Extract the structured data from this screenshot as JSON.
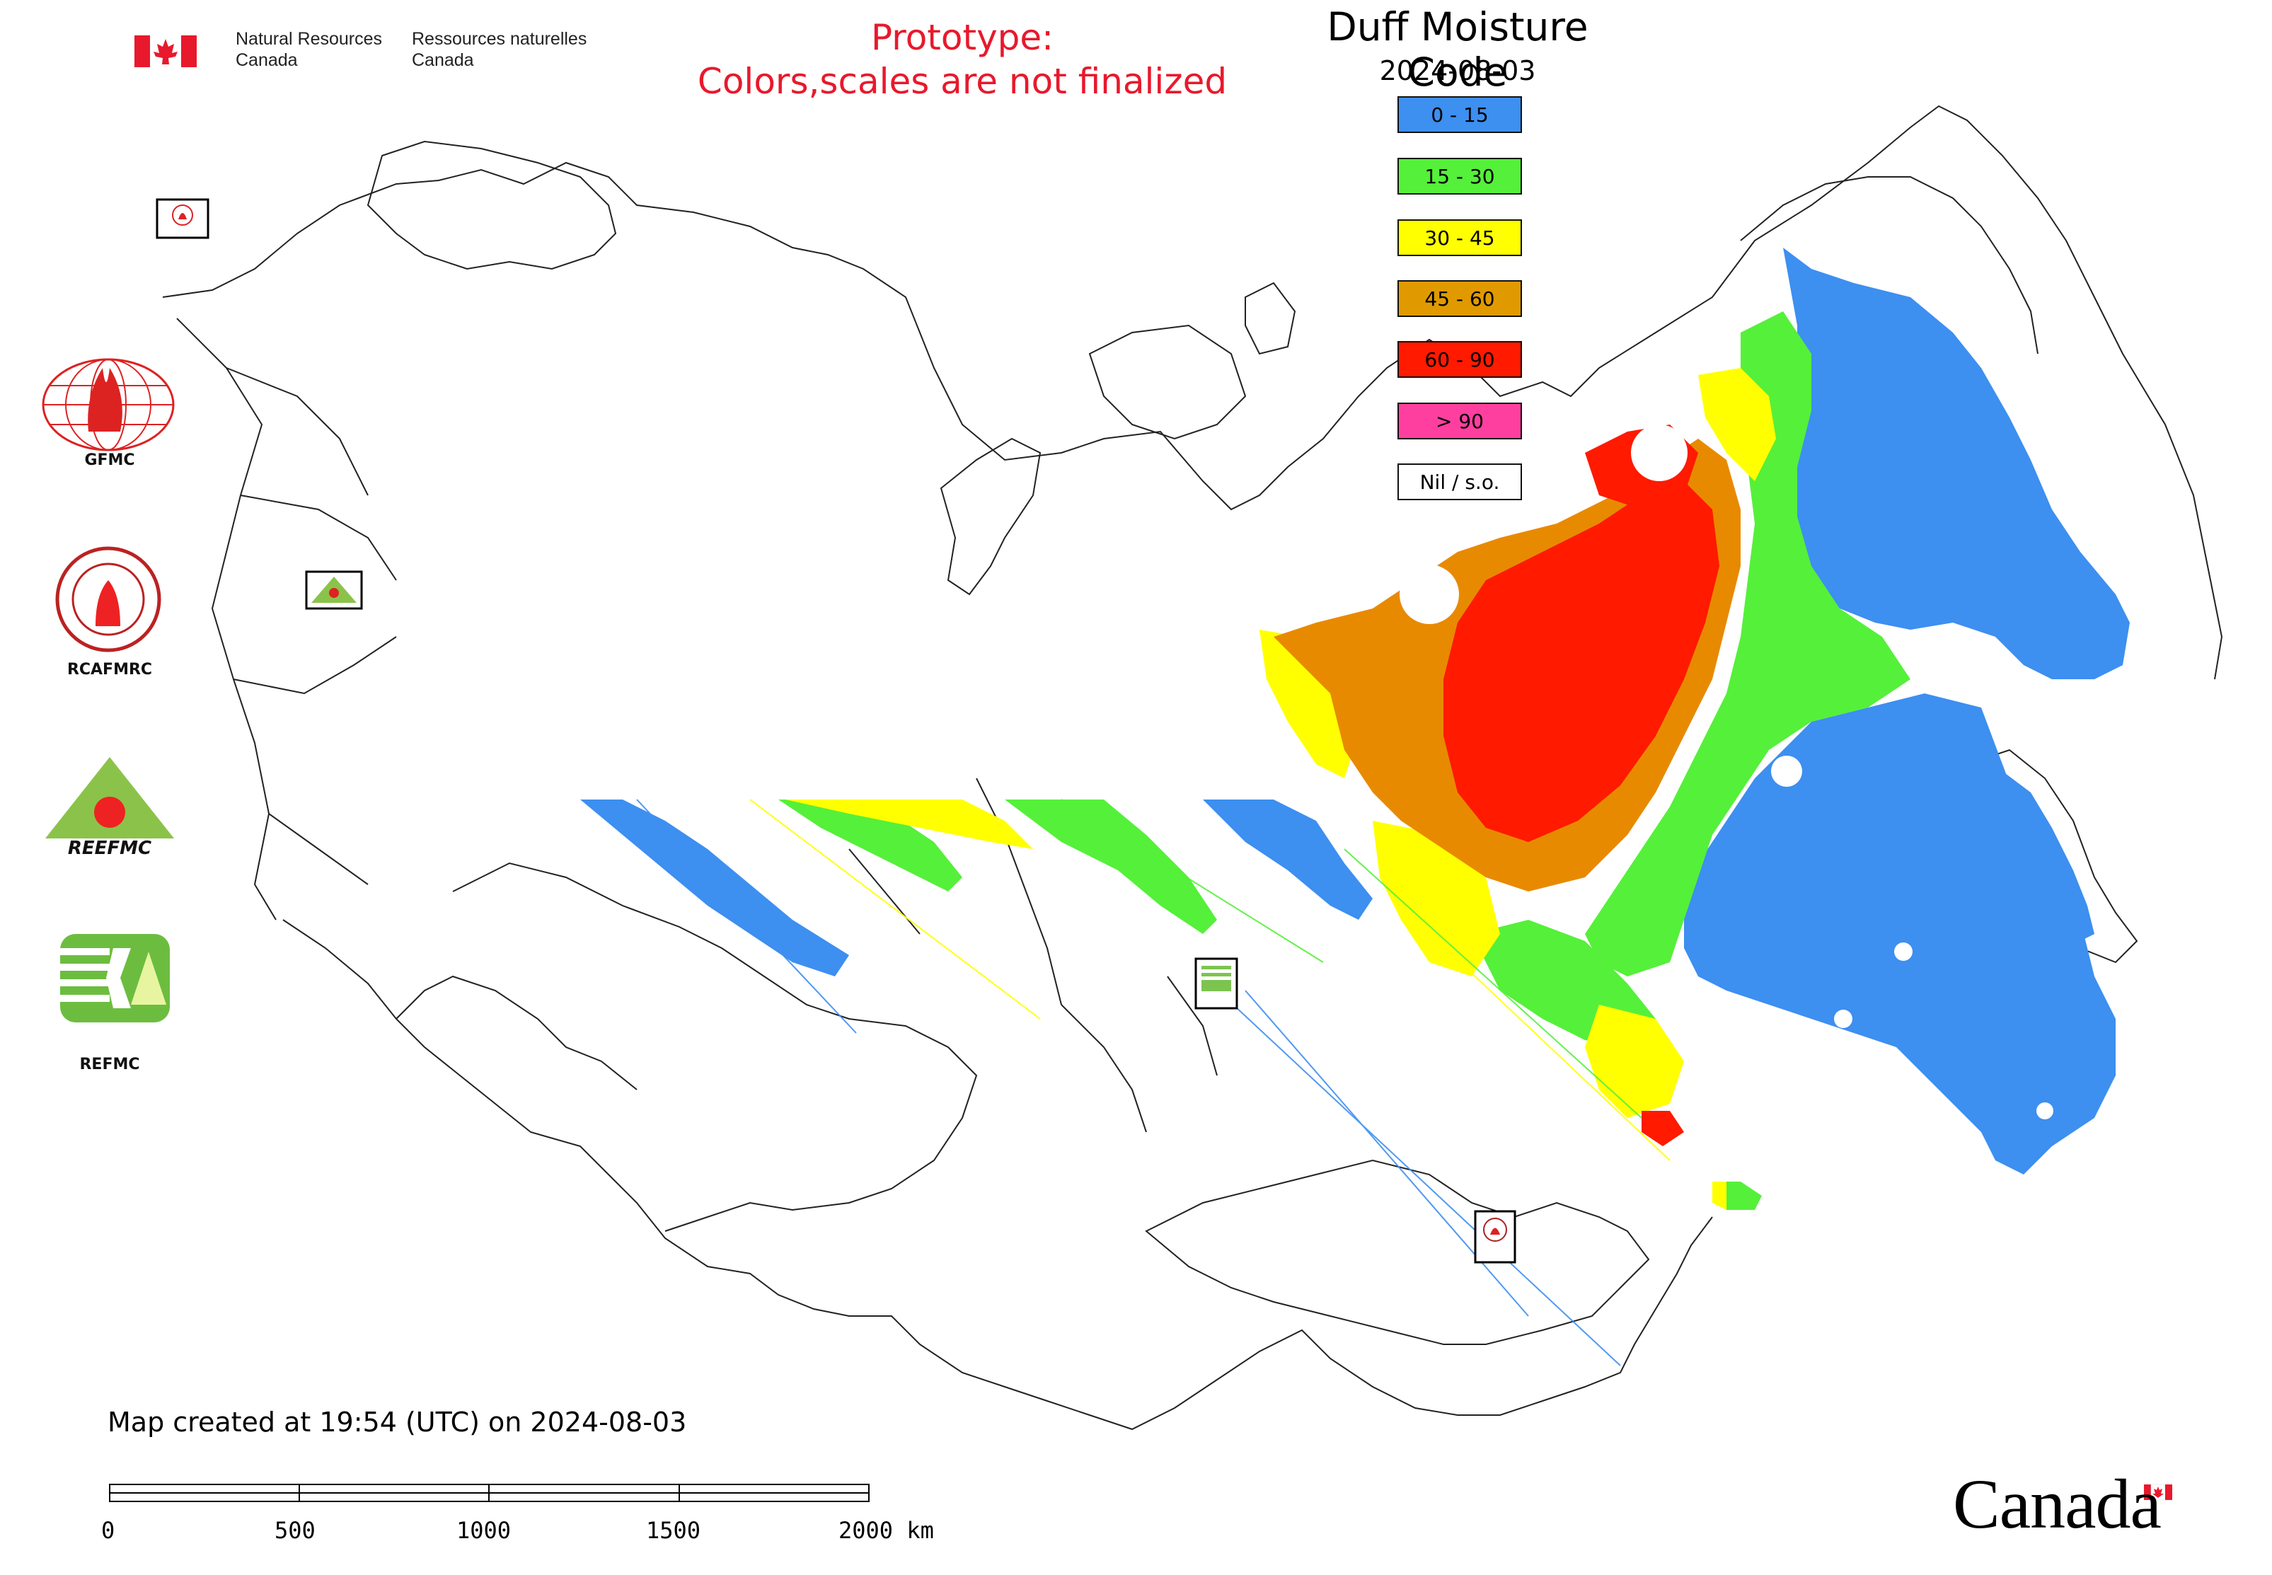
{
  "header": {
    "agency_en_line1": "Natural Resources",
    "agency_en_line2": "Canada",
    "agency_fr_line1": "Ressources naturelles",
    "agency_fr_line2": "Canada"
  },
  "prototype_notice": {
    "line1": "Prototype:",
    "line2": "Colors,scales are not finalized",
    "color": "#e8192c"
  },
  "map": {
    "title": "Duff Moisture Code",
    "date": "2024-08-03"
  },
  "legend": [
    {
      "label": "0 - 15",
      "color": "#3d8ff0"
    },
    {
      "label": "15 - 30",
      "color": "#55f03a"
    },
    {
      "label": "30 - 45",
      "color": "#ffff00"
    },
    {
      "label": "45 - 60",
      "color": "#e09a00"
    },
    {
      "label": "60 - 90",
      "color": "#ff1a00"
    },
    {
      "label": "> 90",
      "color": "#ff3fa0"
    },
    {
      "label": "Nil / s.o.",
      "color": "#ffffff"
    }
  ],
  "logos": [
    {
      "label": "GFMC",
      "icon": "gfmc-logo"
    },
    {
      "label": "RCAFMRC",
      "icon": "rcafmrc-logo"
    },
    {
      "label": "REEFMC",
      "icon": "reefmc-logo"
    },
    {
      "label": "REFMC",
      "icon": "refmc-logo"
    }
  ],
  "footer": {
    "created": "Map created at 19:54 (UTC) on 2024-08-03",
    "scale_labels": [
      "0",
      "500",
      "1000",
      "1500",
      "2000 km"
    ],
    "wordmark": "Canada"
  }
}
